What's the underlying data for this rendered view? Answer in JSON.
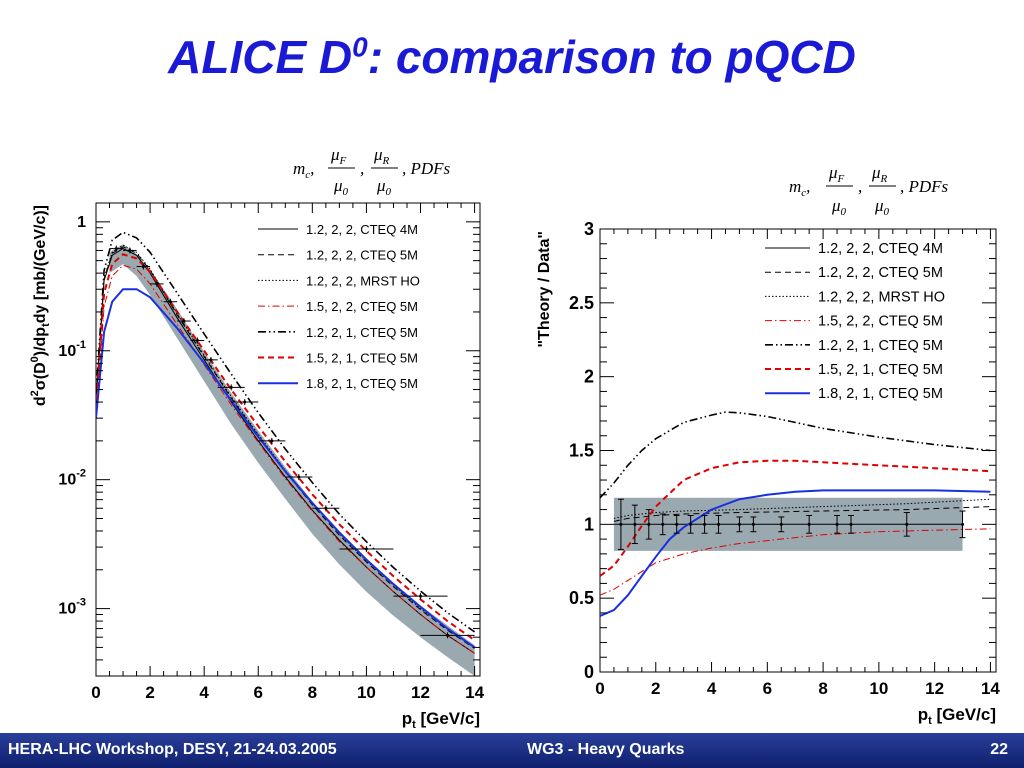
{
  "slide": {
    "title_main": "ALICE D",
    "title_sup": "0",
    "title_rest": ": comparison to pQCD"
  },
  "footer": {
    "left": "HERA-LHC Workshop, DESY, 21-24.03.2005",
    "center": "WG3 - Heavy Quarks",
    "page": "22"
  },
  "legend_header": {
    "m": "m",
    "c": "c",
    "mu": "μ",
    "F": "F",
    "R": "R",
    "zero": "0",
    "pdfs": ", PDFs"
  },
  "colors": {
    "title": "#1a1ad6",
    "band": "#9aa8b0",
    "red": "#e00000",
    "blue": "#1a30e0",
    "black": "#000000",
    "footer_bg": "#1a2a80"
  },
  "chart_data": [
    {
      "type": "line",
      "name": "cross-section",
      "xlabel": "p_t [GeV/c]",
      "ylabel": "d²σ(D⁰)/dp_tdy [mb/(GeV/c)]",
      "xlabel_parts": {
        "p": "p",
        "t": "t",
        "unit": " [GeV/c]"
      },
      "ylabel_parts": {
        "d": "d",
        "two": "2",
        "sigma": "σ(D",
        "zero": "0",
        "mid": ")/dp",
        "t": "t",
        "rest": "dy [mb/(GeV/c)]"
      },
      "xlim": [
        0,
        14.2
      ],
      "ylim": [
        0.0003,
        1.4
      ],
      "log_y": true,
      "x_ticks": [
        0,
        2,
        4,
        6,
        8,
        10,
        12,
        14
      ],
      "y_tick_labels": [
        {
          "value": 1,
          "base": "1",
          "exp": ""
        },
        {
          "value": 0.1,
          "base": "10",
          "exp": "-1"
        },
        {
          "value": 0.01,
          "base": "10",
          "exp": "-2"
        },
        {
          "value": 0.001,
          "base": "10",
          "exp": "-3"
        }
      ],
      "legend_position": "top-right",
      "band": {
        "x": [
          0.5,
          1,
          1.5,
          2,
          3,
          4,
          5,
          6,
          7,
          8,
          9,
          10,
          11,
          12,
          13,
          14
        ],
        "low": [
          0.4,
          0.47,
          0.38,
          0.27,
          0.125,
          0.058,
          0.027,
          0.0135,
          0.0071,
          0.0038,
          0.0022,
          0.00135,
          0.00088,
          0.0006,
          0.00042,
          0.0003
        ],
        "high": [
          0.58,
          0.67,
          0.56,
          0.43,
          0.21,
          0.098,
          0.047,
          0.024,
          0.0125,
          0.0068,
          0.0039,
          0.0024,
          0.00158,
          0.00106,
          0.00074,
          0.00052
        ]
      },
      "points": [
        {
          "x": 0.75,
          "xerr": 0.25,
          "y": 0.62
        },
        {
          "x": 1.25,
          "xerr": 0.25,
          "y": 0.6
        },
        {
          "x": 1.75,
          "xerr": 0.25,
          "y": 0.45
        },
        {
          "x": 2.25,
          "xerr": 0.25,
          "y": 0.33
        },
        {
          "x": 2.75,
          "xerr": 0.25,
          "y": 0.24
        },
        {
          "x": 3.25,
          "xerr": 0.25,
          "y": 0.17
        },
        {
          "x": 3.75,
          "xerr": 0.25,
          "y": 0.12
        },
        {
          "x": 4.25,
          "xerr": 0.25,
          "y": 0.085
        },
        {
          "x": 5.0,
          "xerr": 0.5,
          "y": 0.052
        },
        {
          "x": 5.5,
          "xerr": 0.5,
          "y": 0.04
        },
        {
          "x": 6.5,
          "xerr": 0.5,
          "y": 0.02
        },
        {
          "x": 7.5,
          "xerr": 0.5,
          "y": 0.0105
        },
        {
          "x": 8.5,
          "xerr": 0.5,
          "y": 0.006
        },
        {
          "x": 10.0,
          "xerr": 1.0,
          "y": 0.0029
        },
        {
          "x": 12.0,
          "xerr": 1.0,
          "y": 0.00125
        },
        {
          "x": 13.0,
          "xerr": 1.0,
          "y": 0.00062
        }
      ],
      "series": [
        {
          "name": "1.2, 2, 2, CTEQ 4M",
          "style": "solid",
          "color": "#000000",
          "width": 1,
          "x": [
            0,
            0.3,
            0.6,
            1,
            1.5,
            2,
            3,
            4,
            5,
            6,
            7,
            8,
            9,
            10,
            11,
            12,
            13,
            14
          ],
          "y": [
            0.04,
            0.35,
            0.55,
            0.62,
            0.55,
            0.4,
            0.18,
            0.085,
            0.04,
            0.02,
            0.0105,
            0.0058,
            0.0034,
            0.0021,
            0.00135,
            0.0009,
            0.00062,
            0.00045
          ]
        },
        {
          "name": "1.2, 2, 2, CTEQ 5M",
          "style": "dash",
          "color": "#000000",
          "width": 1,
          "x": [
            0,
            0.3,
            0.6,
            1,
            1.5,
            2,
            3,
            4,
            5,
            6,
            7,
            8,
            9,
            10,
            11,
            12,
            13,
            14
          ],
          "y": [
            0.04,
            0.36,
            0.57,
            0.64,
            0.57,
            0.42,
            0.19,
            0.09,
            0.043,
            0.022,
            0.0115,
            0.0064,
            0.0037,
            0.0023,
            0.00148,
            0.00098,
            0.00068,
            0.00049
          ]
        },
        {
          "name": "1.2, 2, 2, MRST HO",
          "style": "dot",
          "color": "#000000",
          "width": 1,
          "x": [
            0,
            0.3,
            0.6,
            1,
            1.5,
            2,
            3,
            4,
            5,
            6,
            7,
            8,
            9,
            10,
            11,
            12,
            13,
            14
          ],
          "y": [
            0.04,
            0.37,
            0.58,
            0.66,
            0.58,
            0.43,
            0.195,
            0.092,
            0.044,
            0.0225,
            0.0118,
            0.0066,
            0.0038,
            0.00235,
            0.00152,
            0.001,
            0.0007,
            0.0005
          ]
        },
        {
          "name": "1.5, 2, 2, CTEQ 5M",
          "style": "dashdot",
          "color": "#e00000",
          "width": 1,
          "x": [
            0,
            0.3,
            0.6,
            1,
            1.5,
            2,
            3,
            4,
            5,
            6,
            7,
            8,
            9,
            10,
            11,
            12,
            13,
            14
          ],
          "y": [
            0.03,
            0.22,
            0.38,
            0.46,
            0.43,
            0.33,
            0.16,
            0.078,
            0.038,
            0.0195,
            0.0102,
            0.0057,
            0.0033,
            0.0021,
            0.00135,
            0.0009,
            0.00062,
            0.00045
          ]
        },
        {
          "name": "1.2, 2, 1, CTEQ 5M",
          "style": "dashdotdot",
          "color": "#000000",
          "width": 1.6,
          "x": [
            0,
            0.3,
            0.6,
            1,
            1.5,
            2,
            3,
            4,
            5,
            6,
            7,
            8,
            9,
            10,
            11,
            12,
            13,
            14
          ],
          "y": [
            0.045,
            0.42,
            0.72,
            0.83,
            0.75,
            0.58,
            0.28,
            0.135,
            0.066,
            0.033,
            0.0173,
            0.0095,
            0.0054,
            0.0033,
            0.00208,
            0.00137,
            0.00093,
            0.00066
          ]
        },
        {
          "name": "1.5, 2, 1, CTEQ 5M",
          "style": "dash",
          "color": "#e00000",
          "width": 2,
          "x": [
            0,
            0.3,
            0.6,
            1,
            1.5,
            2,
            3,
            4,
            5,
            6,
            7,
            8,
            9,
            10,
            11,
            12,
            13,
            14
          ],
          "y": [
            0.035,
            0.28,
            0.47,
            0.56,
            0.52,
            0.41,
            0.2,
            0.1,
            0.05,
            0.026,
            0.0138,
            0.0077,
            0.0045,
            0.0028,
            0.00178,
            0.00118,
            0.0008,
            0.00057
          ]
        },
        {
          "name": "1.8, 2, 1, CTEQ 5M",
          "style": "solid",
          "color": "#1a30e0",
          "width": 2,
          "x": [
            0,
            0.3,
            0.6,
            1,
            1.5,
            2,
            3,
            4,
            5,
            6,
            7,
            8,
            9,
            10,
            11,
            12,
            13,
            14
          ],
          "y": [
            0.03,
            0.14,
            0.24,
            0.3,
            0.3,
            0.26,
            0.15,
            0.08,
            0.041,
            0.0215,
            0.0116,
            0.0066,
            0.0039,
            0.0024,
            0.00155,
            0.00103,
            0.0007,
            0.0005
          ]
        }
      ]
    },
    {
      "type": "line",
      "name": "ratio",
      "xlabel": "p_t [GeV/c]",
      "ylabel": "\"Theory / Data\"",
      "xlabel_parts": {
        "p": "p",
        "t": "t",
        "unit": " [GeV/c]"
      },
      "xlim": [
        0,
        14.2
      ],
      "ylim": [
        0,
        3
      ],
      "x_ticks": [
        0,
        2,
        4,
        6,
        8,
        10,
        12,
        14
      ],
      "y_ticks": [
        0,
        0.5,
        1,
        1.5,
        2,
        2.5,
        3
      ],
      "y_tick_labels": [
        "0",
        "0.5",
        "1",
        "1.5",
        "2",
        "2.5",
        "3"
      ],
      "legend_position": "top-right",
      "band": {
        "x": [
          0.5,
          13
        ],
        "low": [
          0.82,
          0.82
        ],
        "high": [
          1.18,
          1.18
        ]
      },
      "points": [
        {
          "x": 0.75,
          "y": 1,
          "yerr": 0.17
        },
        {
          "x": 1.25,
          "y": 1,
          "yerr": 0.13
        },
        {
          "x": 1.75,
          "y": 1,
          "yerr": 0.1
        },
        {
          "x": 2.25,
          "y": 1,
          "yerr": 0.07
        },
        {
          "x": 2.75,
          "y": 1,
          "yerr": 0.06
        },
        {
          "x": 3.25,
          "y": 1,
          "yerr": 0.06
        },
        {
          "x": 3.75,
          "y": 1,
          "yerr": 0.06
        },
        {
          "x": 4.25,
          "y": 1,
          "yerr": 0.06
        },
        {
          "x": 5.0,
          "y": 1,
          "yerr": 0.05
        },
        {
          "x": 5.5,
          "y": 1,
          "yerr": 0.05
        },
        {
          "x": 6.5,
          "y": 1,
          "yerr": 0.05
        },
        {
          "x": 7.5,
          "y": 1,
          "yerr": 0.06
        },
        {
          "x": 8.5,
          "y": 1,
          "yerr": 0.06
        },
        {
          "x": 9.0,
          "y": 1,
          "yerr": 0.06
        },
        {
          "x": 11.0,
          "y": 1,
          "yerr": 0.08
        },
        {
          "x": 13.0,
          "y": 1,
          "yerr": 0.09
        }
      ],
      "series": [
        {
          "name": "1.2, 2, 2, CTEQ 4M",
          "style": "solid",
          "color": "#000000",
          "width": 1,
          "x": [
            0.5,
            13
          ],
          "y": [
            1.0,
            1.0
          ]
        },
        {
          "name": "1.2, 2, 2, CTEQ 5M",
          "style": "dash",
          "color": "#000000",
          "width": 1,
          "x": [
            0.5,
            1,
            2,
            3,
            5,
            8,
            11,
            14
          ],
          "y": [
            1.02,
            1.04,
            1.06,
            1.07,
            1.08,
            1.09,
            1.1,
            1.12
          ]
        },
        {
          "name": "1.2, 2, 2, MRST HO",
          "style": "dot",
          "color": "#000000",
          "width": 1,
          "x": [
            0.5,
            1,
            2,
            3,
            5,
            8,
            11,
            14
          ],
          "y": [
            1.04,
            1.06,
            1.08,
            1.09,
            1.1,
            1.12,
            1.14,
            1.17
          ]
        },
        {
          "name": "1.5, 2, 2, CTEQ 5M",
          "style": "dashdot",
          "color": "#e00000",
          "width": 1,
          "x": [
            0,
            0.5,
            1,
            1.5,
            2,
            3,
            4,
            5,
            6,
            7,
            8,
            10,
            12,
            14
          ],
          "y": [
            0.52,
            0.56,
            0.62,
            0.68,
            0.74,
            0.8,
            0.84,
            0.87,
            0.89,
            0.91,
            0.93,
            0.95,
            0.96,
            0.97
          ]
        },
        {
          "name": "1.2, 2, 1, CTEQ 5M",
          "style": "dashdotdot",
          "color": "#000000",
          "width": 1.6,
          "x": [
            0,
            0.5,
            1,
            1.5,
            2,
            3,
            4,
            4.5,
            5,
            6,
            7,
            8,
            10,
            12,
            14
          ],
          "y": [
            1.18,
            1.28,
            1.4,
            1.5,
            1.58,
            1.69,
            1.74,
            1.76,
            1.755,
            1.73,
            1.69,
            1.65,
            1.59,
            1.54,
            1.5
          ]
        },
        {
          "name": "1.5, 2, 1, CTEQ 5M",
          "style": "dash",
          "color": "#e00000",
          "width": 2,
          "x": [
            0,
            0.5,
            1,
            1.5,
            2,
            3,
            4,
            5,
            6,
            7,
            8,
            10,
            12,
            14
          ],
          "y": [
            0.65,
            0.72,
            0.85,
            0.99,
            1.12,
            1.3,
            1.38,
            1.42,
            1.43,
            1.43,
            1.42,
            1.4,
            1.38,
            1.36
          ]
        },
        {
          "name": "1.8, 2, 1, CTEQ 5M",
          "style": "solid",
          "color": "#1a30e0",
          "width": 2,
          "x": [
            0,
            0.5,
            1,
            1.5,
            2,
            2.5,
            3,
            4,
            5,
            6,
            7,
            8,
            10,
            12,
            14
          ],
          "y": [
            0.38,
            0.42,
            0.52,
            0.65,
            0.78,
            0.9,
            0.98,
            1.1,
            1.17,
            1.2,
            1.22,
            1.23,
            1.23,
            1.23,
            1.22
          ]
        }
      ]
    }
  ]
}
